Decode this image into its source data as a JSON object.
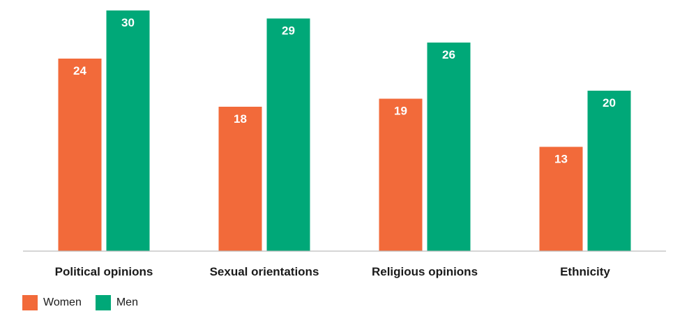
{
  "chart_data": {
    "type": "bar",
    "categories": [
      "Political opinions",
      "Sexual orientations",
      "Religious opinions",
      "Ethnicity"
    ],
    "series": [
      {
        "name": "Women",
        "color": "#f26a3a",
        "values": [
          24,
          18,
          19,
          13
        ]
      },
      {
        "name": "Men",
        "color": "#00a878",
        "values": [
          30,
          29,
          26,
          20
        ]
      }
    ],
    "ylim": [
      0,
      30
    ],
    "title": "",
    "xlabel": "",
    "ylabel": "",
    "grid": false,
    "legend": "bottom-left"
  }
}
